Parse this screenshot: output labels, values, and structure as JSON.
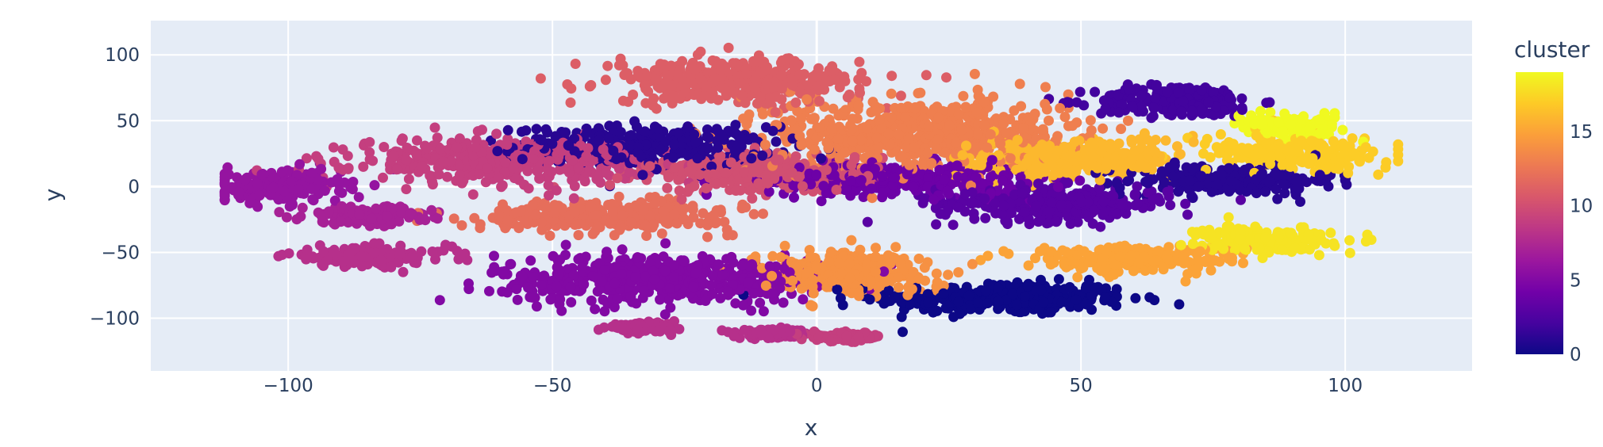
{
  "chart_data": {
    "type": "scatter",
    "xlabel": "x",
    "ylabel": "y",
    "xlim": [
      -126,
      124
    ],
    "ylim": [
      -140,
      126
    ],
    "xticks": [
      -100,
      -50,
      0,
      50,
      100
    ],
    "yticks": [
      -100,
      -50,
      0,
      50,
      100
    ],
    "xtick_labels": [
      "−100",
      "−50",
      "0",
      "50",
      "100"
    ],
    "ytick_labels": [
      "−100",
      "−50",
      "0",
      "50",
      "100"
    ],
    "grid": true,
    "colorbar": {
      "title": "cluster",
      "range": [
        0,
        19
      ],
      "ticks": [
        0,
        5,
        10,
        15
      ],
      "tick_labels": [
        "0",
        "5",
        "10",
        "15"
      ],
      "colorscale": "plasma"
    },
    "clusters": [
      {
        "cluster": 0,
        "cx": 35,
        "cy": -85,
        "rx": 22,
        "ry": 11
      },
      {
        "cluster": 1,
        "cx": -33,
        "cy": 30,
        "rx": 22,
        "ry": 14
      },
      {
        "cluster": 1,
        "cx": 78,
        "cy": 5,
        "rx": 18,
        "ry": 10
      },
      {
        "cluster": 2,
        "cx": 68,
        "cy": 65,
        "rx": 14,
        "ry": 11
      },
      {
        "cluster": 3,
        "cx": 45,
        "cy": -13,
        "rx": 20,
        "ry": 12
      },
      {
        "cluster": 4,
        "cx": 15,
        "cy": 5,
        "rx": 22,
        "ry": 11
      },
      {
        "cluster": 5,
        "cx": -30,
        "cy": -70,
        "rx": 28,
        "ry": 17
      },
      {
        "cluster": 6,
        "cx": -102,
        "cy": 0,
        "rx": 11,
        "ry": 11
      },
      {
        "cluster": 7,
        "cx": -85,
        "cy": -22,
        "rx": 11,
        "ry": 6
      },
      {
        "cluster": 8,
        "cx": -85,
        "cy": -53,
        "rx": 14,
        "ry": 7
      },
      {
        "cluster": 8,
        "cx": -33,
        "cy": -107,
        "rx": 6,
        "ry": 3
      },
      {
        "cluster": 8,
        "cx": -8,
        "cy": -112,
        "rx": 6,
        "ry": 3
      },
      {
        "cluster": 9,
        "cx": 6,
        "cy": -114,
        "rx": 6,
        "ry": 3
      },
      {
        "cluster": 9,
        "cx": -60,
        "cy": 20,
        "rx": 25,
        "ry": 15
      },
      {
        "cluster": 10,
        "cx": -10,
        "cy": 10,
        "rx": 20,
        "ry": 13
      },
      {
        "cluster": 11,
        "cx": -15,
        "cy": 80,
        "rx": 22,
        "ry": 15
      },
      {
        "cluster": 12,
        "cx": -40,
        "cy": -22,
        "rx": 22,
        "ry": 10
      },
      {
        "cluster": 13,
        "cx": 20,
        "cy": 40,
        "rx": 25,
        "ry": 25
      },
      {
        "cluster": 14,
        "cx": 5,
        "cy": -65,
        "rx": 15,
        "ry": 15
      },
      {
        "cluster": 15,
        "cx": 60,
        "cy": -55,
        "rx": 18,
        "ry": 9
      },
      {
        "cluster": 16,
        "cx": 48,
        "cy": 22,
        "rx": 18,
        "ry": 14
      },
      {
        "cluster": 17,
        "cx": 90,
        "cy": 25,
        "rx": 15,
        "ry": 12
      },
      {
        "cluster": 18,
        "cx": 85,
        "cy": -40,
        "rx": 11,
        "ry": 9
      },
      {
        "cluster": 19,
        "cx": 90,
        "cy": 45,
        "rx": 9,
        "ry": 7
      }
    ]
  }
}
